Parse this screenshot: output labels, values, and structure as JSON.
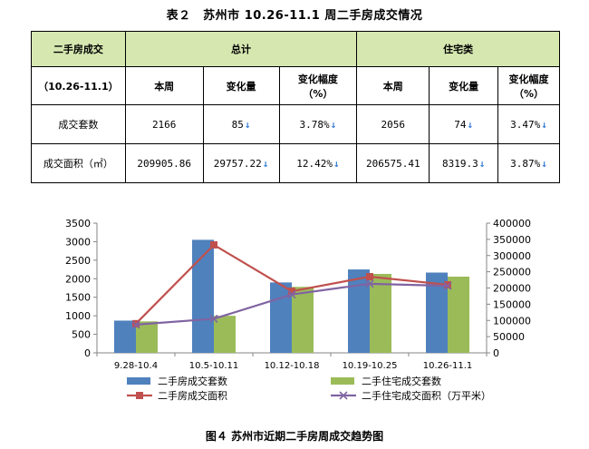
{
  "table_title": "表２　苏州市 10.26-11.1 周二手房成交情况",
  "table": {
    "corner_label": "二手房成交",
    "period_label": "（10.26-11.1）",
    "group_total": "总计",
    "group_residential": "住宅类",
    "col_this_week": "本周",
    "col_change": "变化量",
    "col_rate_line1": "变化幅度",
    "col_rate_line2": "（%）",
    "row_units_label": "成交套数",
    "row_area_label": "成交面积（㎡）",
    "units": {
      "total_this_week": "2166",
      "total_change": "85",
      "total_rate": "3.78%",
      "res_this_week": "2056",
      "res_change": "74",
      "res_rate": "3.47%"
    },
    "area": {
      "total_this_week": "209905.86",
      "total_change": "29757.22",
      "total_rate": "12.42%",
      "res_this_week": "206575.41",
      "res_change": "8319.3",
      "res_rate": "3.87%"
    },
    "arrow_down": "↓",
    "arrow_color": "#3a7fd5",
    "header_bg": "#d6e8b0"
  },
  "chart_data": {
    "type": "bar",
    "categories": [
      "9.28-10.4",
      "10.5-10.11",
      "10.12-10.18",
      "10.19-10.25",
      "10.26-11.1"
    ],
    "y_left": {
      "range": [
        0,
        3500
      ],
      "ticks": [
        0,
        500,
        1000,
        1500,
        2000,
        2500,
        3000,
        3500
      ]
    },
    "y_right": {
      "range": [
        0,
        400000
      ],
      "ticks": [
        0,
        50000,
        100000,
        150000,
        200000,
        250000,
        300000,
        350000,
        400000
      ]
    },
    "series": [
      {
        "name": "二手房成交套数",
        "kind": "bar",
        "axis": "left",
        "color": "#4f81bd",
        "values": [
          870,
          3050,
          1900,
          2250,
          2166
        ]
      },
      {
        "name": "二手住宅成交套数",
        "kind": "bar",
        "axis": "left",
        "color": "#9bbb59",
        "values": [
          850,
          1000,
          1780,
          2130,
          2056
        ]
      },
      {
        "name": "二手房成交面积",
        "kind": "line",
        "axis": "right",
        "color": "#c0504d",
        "marker": "square",
        "values": [
          90000,
          333000,
          190000,
          235000,
          209906
        ]
      },
      {
        "name": "二手住宅成交面积（万平米）",
        "kind": "line",
        "axis": "right",
        "color": "#8064a2",
        "marker": "x",
        "values": [
          87000,
          105000,
          180000,
          213000,
          206575
        ]
      }
    ],
    "legend_position": "bottom",
    "grid": false
  },
  "figure_caption": "图４ 苏州市近期二手房周成交趋势图"
}
